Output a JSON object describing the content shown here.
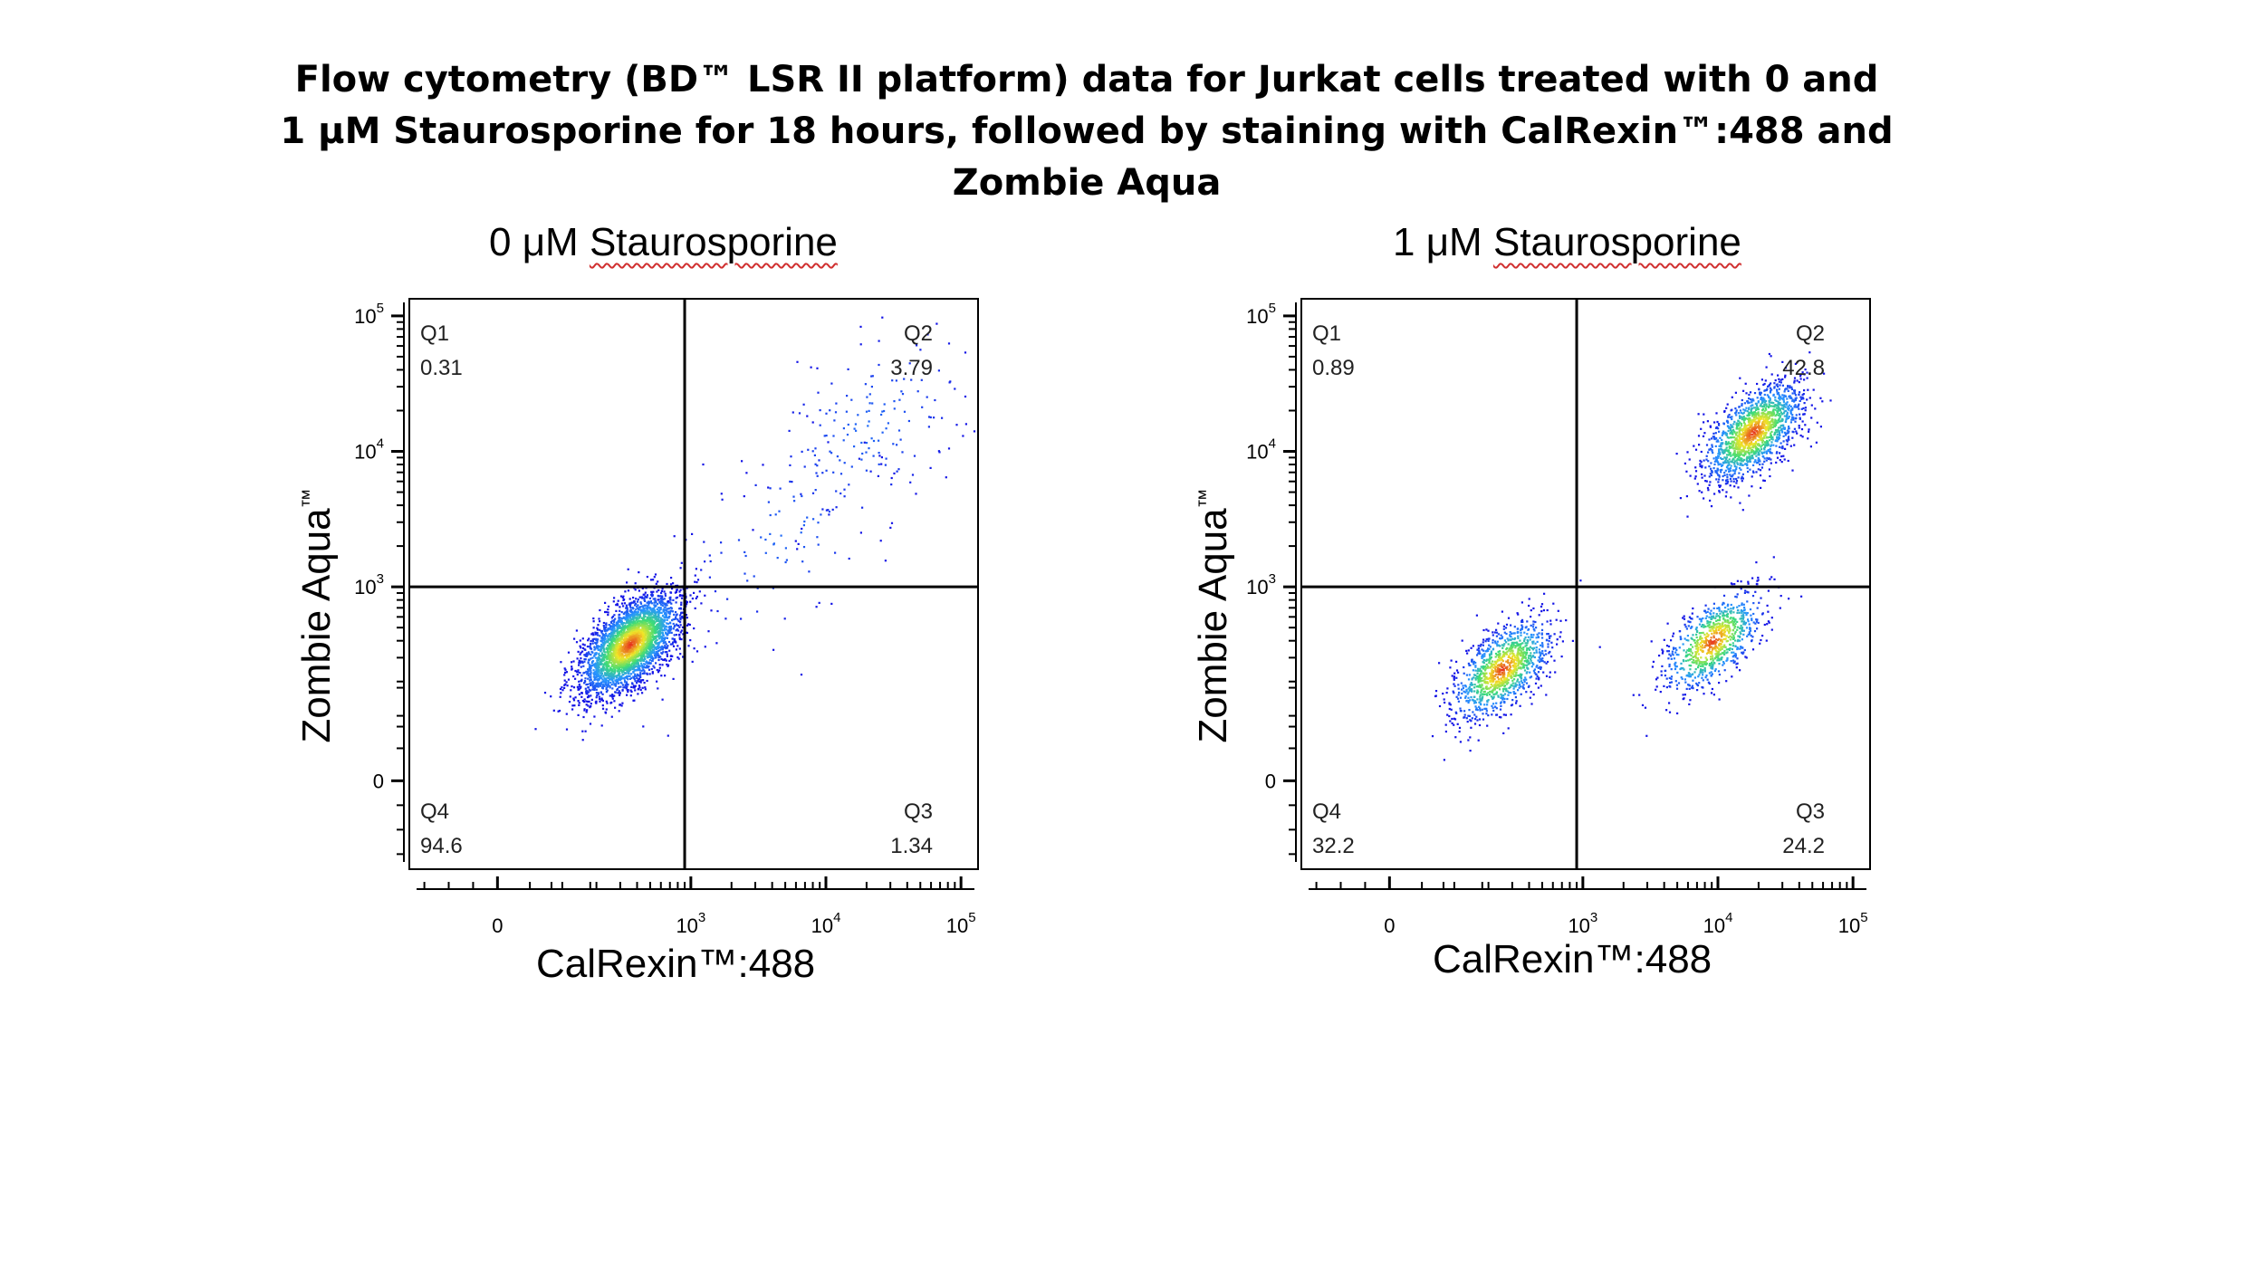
{
  "title": {
    "line1": "Flow cytometry (BD™ LSR II platform) data for Jurkat cells treated with 0 and",
    "line2": "1 μM Staurosporine for 18 hours, followed by staining with CalRexin™:488 and",
    "line3": "Zombie Aqua"
  },
  "chart_data": [
    {
      "type": "scatter",
      "subtitle_prefix": "0 μM",
      "subtitle_compound": "Staurosporine",
      "xlabel": "CalRexin™:488",
      "ylabel": "Zombie Aqua",
      "ylabel_mark": "™",
      "x_scale": "biexponential",
      "y_scale": "biexponential",
      "x_ticks": [
        {
          "value": "0",
          "label": "0"
        },
        {
          "value": "1e3",
          "label": "10",
          "exp": "3"
        },
        {
          "value": "1e4",
          "label": "10",
          "exp": "4"
        },
        {
          "value": "1e5",
          "label": "10",
          "exp": "5"
        }
      ],
      "y_ticks": [
        {
          "value": "0",
          "label": "0"
        },
        {
          "value": "1e3",
          "label": "10",
          "exp": "3"
        },
        {
          "value": "1e4",
          "label": "10",
          "exp": "4"
        },
        {
          "value": "1e5",
          "label": "10",
          "exp": "5"
        }
      ],
      "gate": {
        "x": 900,
        "y": 1000
      },
      "quadrants": [
        {
          "name": "Q1",
          "value": "0.31"
        },
        {
          "name": "Q2",
          "value": "3.79"
        },
        {
          "name": "Q3",
          "value": "1.34"
        },
        {
          "name": "Q4",
          "value": "94.6"
        }
      ],
      "populations": [
        {
          "center_x": 350,
          "center_y": 380,
          "spread": "dense",
          "fraction": 0.946
        },
        {
          "center_x": 20000,
          "center_y": 15000,
          "spread": "sparse",
          "fraction": 0.038
        },
        {
          "center_x": 5000,
          "center_y": 2500,
          "spread": "sparse",
          "fraction": 0.016
        }
      ]
    },
    {
      "type": "scatter",
      "subtitle_prefix": "1 μM",
      "subtitle_compound": "Staurosporine",
      "xlabel": "CalRexin™:488",
      "ylabel": "Zombie Aqua",
      "ylabel_mark": "™",
      "x_scale": "biexponential",
      "y_scale": "biexponential",
      "x_ticks": [
        {
          "value": "0",
          "label": "0"
        },
        {
          "value": "1e3",
          "label": "10",
          "exp": "3"
        },
        {
          "value": "1e4",
          "label": "10",
          "exp": "4"
        },
        {
          "value": "1e5",
          "label": "10",
          "exp": "5"
        }
      ],
      "y_ticks": [
        {
          "value": "0",
          "label": "0"
        },
        {
          "value": "1e3",
          "label": "10",
          "exp": "3"
        },
        {
          "value": "1e4",
          "label": "10",
          "exp": "4"
        },
        {
          "value": "1e5",
          "label": "10",
          "exp": "5"
        }
      ],
      "gate": {
        "x": 900,
        "y": 1000
      },
      "quadrants": [
        {
          "name": "Q1",
          "value": "0.89"
        },
        {
          "name": "Q2",
          "value": "42.8"
        },
        {
          "name": "Q3",
          "value": "24.2"
        },
        {
          "name": "Q4",
          "value": "32.2"
        }
      ],
      "populations": [
        {
          "center_x": 250,
          "center_y": 250,
          "spread": "dense",
          "fraction": 0.32
        },
        {
          "center_x": 18000,
          "center_y": 14000,
          "spread": "dense",
          "fraction": 0.43
        },
        {
          "center_x": 9000,
          "center_y": 400,
          "spread": "dense",
          "fraction": 0.24
        }
      ]
    }
  ]
}
